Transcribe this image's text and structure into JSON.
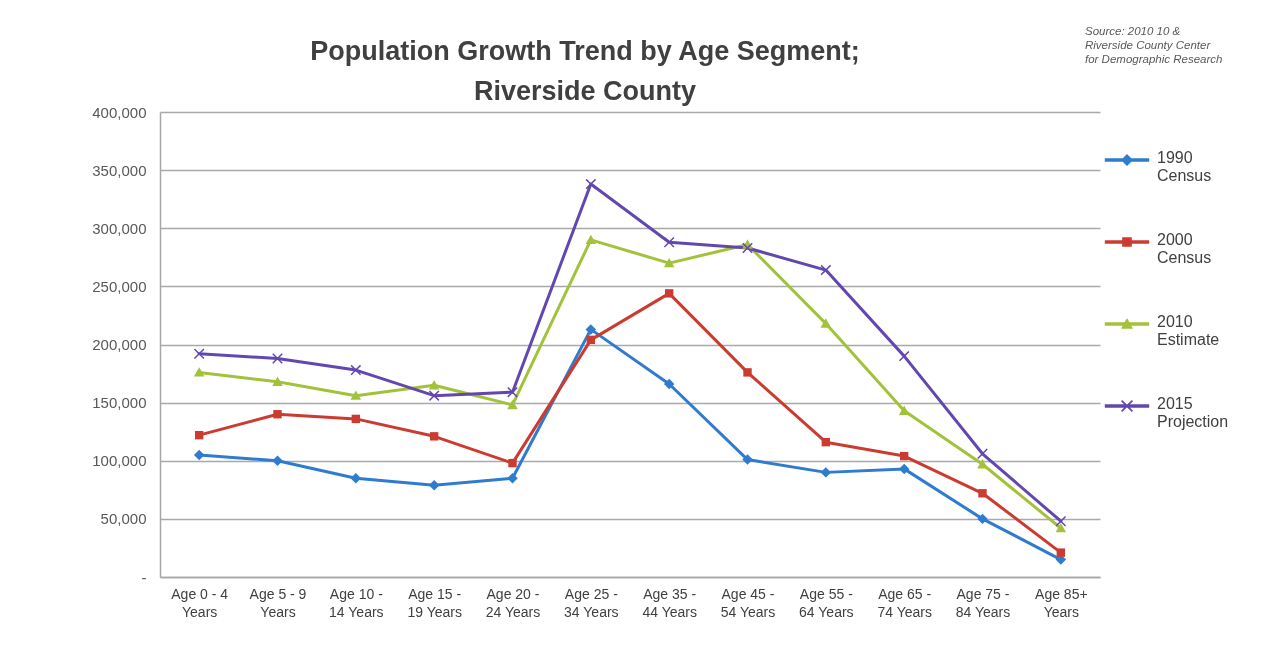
{
  "chart_data": {
    "type": "line",
    "title": "Population Growth Trend by Age Segment; Riverside County",
    "annotations": [
      "Source: 2010 10 & Riverside County Center for Demographic Research"
    ],
    "categories": [
      "Age 0 - 4 Years",
      "Age 5 - 9 Years",
      "Age 10 - 14 Years",
      "Age 15 - 19 Years",
      "Age 20 - 24 Years",
      "Age 25 - 34 Years",
      "Age 35 - 44 Years",
      "Age 45 - 54 Years",
      "Age 55 - 64 Years",
      "Age 65 - 74 Years",
      "Age 75 - 84 Years",
      "Age 85+ Years"
    ],
    "series": [
      {
        "name": "1990 Census",
        "color": "#2f7bd0",
        "marker": "diamond",
        "values": [
          105000,
          100000,
          85000,
          79000,
          85000,
          213000,
          166000,
          101000,
          90000,
          93000,
          50000,
          15000
        ]
      },
      {
        "name": "2000 Census",
        "color": "#cc3b30",
        "marker": "square",
        "values": [
          122000,
          140000,
          136000,
          121000,
          98000,
          204000,
          244000,
          176000,
          116000,
          104000,
          72000,
          21000
        ]
      },
      {
        "name": "2010 Estimate",
        "color": "#a2c23a",
        "marker": "triangle",
        "values": [
          176000,
          168000,
          156000,
          165000,
          148000,
          290000,
          270000,
          286000,
          218000,
          143000,
          97000,
          42000
        ]
      },
      {
        "name": "2015 Projection",
        "color": "#6347b0",
        "marker": "cross",
        "values": [
          192000,
          188000,
          178000,
          156000,
          159000,
          338000,
          288000,
          283000,
          264000,
          190000,
          106000,
          48000
        ]
      }
    ],
    "ylim": [
      0,
      400000
    ],
    "yticks": [
      {
        "value": 0,
        "label": "-"
      },
      {
        "value": 50000,
        "label": "50,000"
      },
      {
        "value": 100000,
        "label": "100,000"
      },
      {
        "value": 150000,
        "label": "150,000"
      },
      {
        "value": 200000,
        "label": "200,000"
      },
      {
        "value": 250000,
        "label": "250,000"
      },
      {
        "value": 300000,
        "label": "300,000"
      },
      {
        "value": 350000,
        "label": "350,000"
      },
      {
        "value": 400000,
        "label": "400,000"
      }
    ],
    "grid": "y",
    "legend": "right"
  }
}
